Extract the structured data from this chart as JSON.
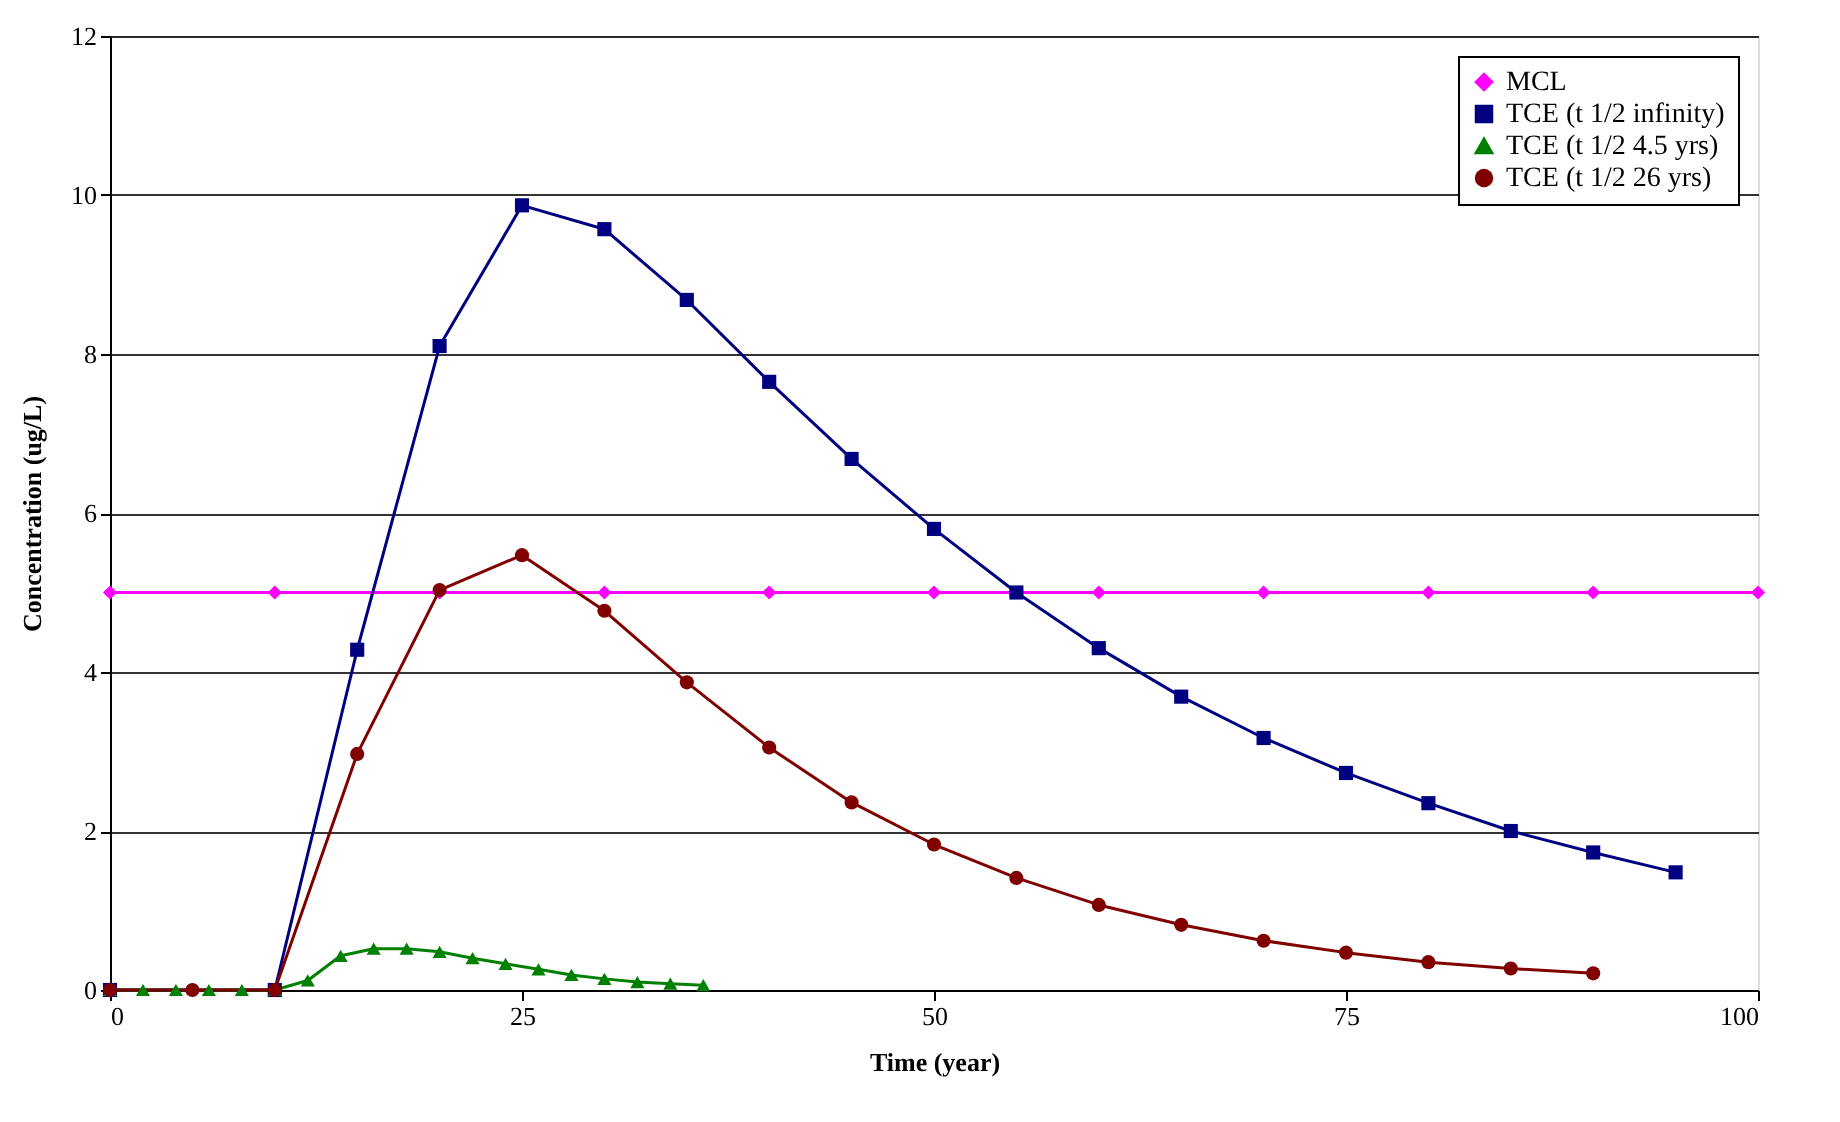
{
  "chart_data": {
    "type": "line",
    "xlabel": "Time (year)",
    "ylabel": "Concentration (ug/L)",
    "xlim": [
      0,
      100
    ],
    "xticks": [
      0,
      25,
      50,
      75,
      100
    ],
    "ylim": [
      0,
      12
    ],
    "yticks": [
      0,
      2,
      4,
      6,
      8,
      10,
      12
    ],
    "grid": "y",
    "legend": "top right",
    "line_style": "solid",
    "series": [
      {
        "name": "MCL",
        "color": "#ff00ff",
        "marker": "diamond",
        "x": [
          0,
          10,
          20,
          30,
          40,
          50,
          60,
          70,
          80,
          90,
          100
        ],
        "values": [
          5,
          5,
          5,
          5,
          5,
          5,
          5,
          5,
          5,
          5,
          5
        ]
      },
      {
        "name": "TCE (t 1/2 infinity)",
        "color": "#000080",
        "marker": "square",
        "x": [
          0,
          10,
          15,
          20,
          25,
          30,
          35,
          40,
          45,
          50,
          55,
          60,
          65,
          70,
          75,
          80,
          85,
          90,
          95
        ],
        "values": [
          0,
          0,
          4.28,
          8.1,
          9.87,
          9.57,
          8.68,
          7.65,
          6.68,
          5.8,
          5.0,
          4.3,
          3.69,
          3.17,
          2.73,
          2.35,
          2.0,
          1.73,
          1.48
        ]
      },
      {
        "name": "TCE (t 1/2 4.5 yrs)",
        "color": "#008000",
        "marker": "triangle",
        "x": [
          0,
          2,
          4,
          6,
          8,
          10,
          12,
          14,
          16,
          18,
          20,
          22,
          24,
          26,
          28,
          30,
          32,
          34,
          36
        ],
        "values": [
          0,
          0,
          0,
          0,
          0,
          0,
          0.12,
          0.43,
          0.52,
          0.52,
          0.48,
          0.4,
          0.33,
          0.26,
          0.19,
          0.14,
          0.1,
          0.08,
          0.06
        ]
      },
      {
        "name": "TCE (t 1/2 26 yrs)",
        "color": "#800000",
        "marker": "circle",
        "x": [
          0,
          5,
          10,
          15,
          20,
          25,
          30,
          35,
          40,
          45,
          50,
          55,
          60,
          65,
          70,
          75,
          80,
          85,
          90
        ],
        "values": [
          0,
          0,
          0,
          2.97,
          5.03,
          5.47,
          4.77,
          3.87,
          3.05,
          2.36,
          1.83,
          1.41,
          1.07,
          0.82,
          0.62,
          0.47,
          0.35,
          0.27,
          0.21
        ]
      }
    ]
  }
}
